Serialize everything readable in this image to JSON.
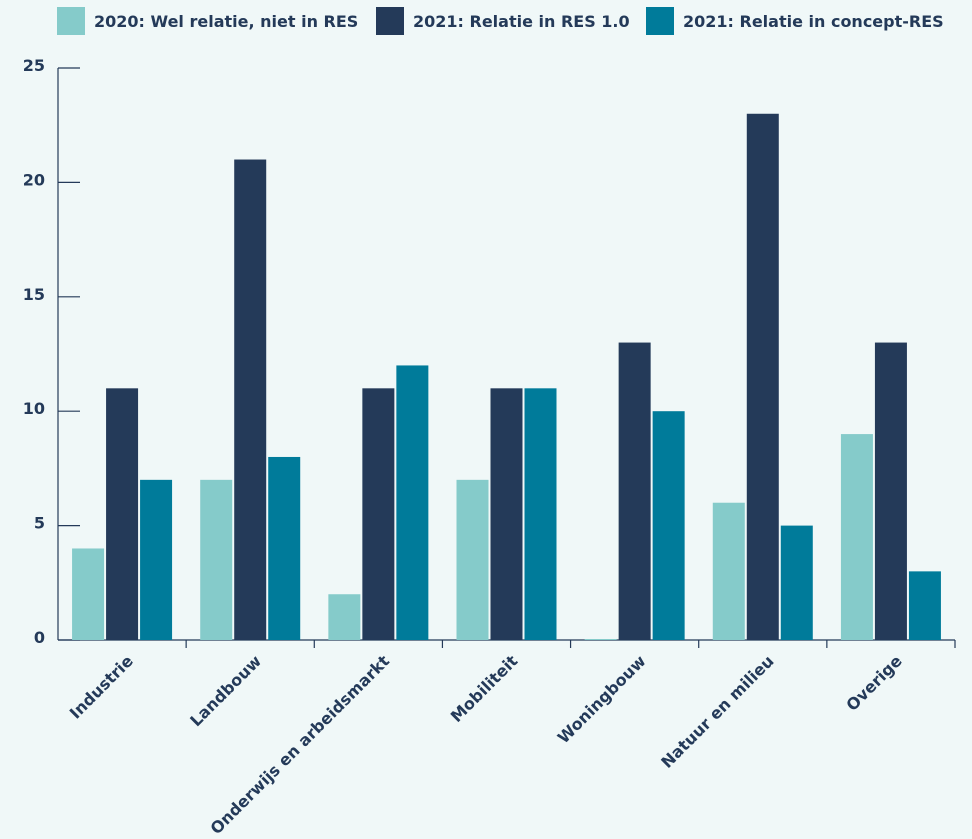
{
  "chart_data": {
    "type": "bar",
    "categories": [
      "Industrie",
      "Landbouw",
      "Onderwijs en arbeidsmarkt",
      "Mobiliteit",
      "Woningbouw",
      "Natuur en milieu",
      "Overige"
    ],
    "series": [
      {
        "name": "2020: Wel relatie, niet in RES",
        "color": "#85cbca",
        "values": [
          4,
          7,
          2,
          7,
          0,
          6,
          9
        ]
      },
      {
        "name": "2021: Relatie in RES 1.0",
        "color": "#243a59",
        "values": [
          11,
          21,
          11,
          11,
          13,
          23,
          13
        ]
      },
      {
        "name": "2021: Relatie in concept-RES",
        "color": "#007b9a",
        "values": [
          7,
          8,
          12,
          11,
          10,
          5,
          3
        ]
      }
    ],
    "ylim": [
      0,
      25
    ],
    "yticks": [
      0,
      5,
      10,
      15,
      20,
      25
    ],
    "legend": "top",
    "grid": false
  }
}
